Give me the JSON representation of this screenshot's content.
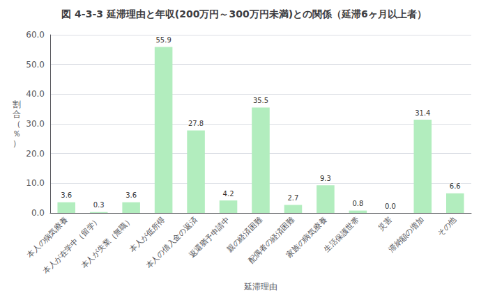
{
  "chart_data": {
    "type": "bar",
    "title": "図 4-3-3 延滞理由と年収(200万円～300万円未満)との関係（延滞6ヶ月以上者）",
    "categories": [
      "本人の病気療養",
      "本人が在学中（留学）",
      "本人が失業（無職）",
      "本人が低所得",
      "本人の借入金の返済",
      "返還猶予申請中",
      "親の経済困難",
      "配偶者の経済困難",
      "家族の病気療養",
      "生活保護世帯",
      "災害",
      "滞納額の増加",
      "その他"
    ],
    "values": [
      3.6,
      0.3,
      3.6,
      55.9,
      27.8,
      4.2,
      35.5,
      2.7,
      9.3,
      0.8,
      0.0,
      31.4,
      6.6
    ],
    "value_labels": [
      "3.6",
      "0.3",
      "3.6",
      "55.9",
      "27.8",
      "4.2",
      "35.5",
      "2.7",
      "9.3",
      "0.8",
      "0.0",
      "31.4",
      "6.6"
    ],
    "data_labels": true,
    "color": "#b2edbe",
    "xlabel": "延滞理由",
    "ylabel": "割\n合\n（\n％\n）",
    "ylim": [
      0,
      60
    ],
    "yticks": [
      {
        "value": 0,
        "label": "0.0"
      },
      {
        "value": 10,
        "label": "10.0"
      },
      {
        "value": 20,
        "label": "20.0"
      },
      {
        "value": 30,
        "label": "30.0"
      },
      {
        "value": 40,
        "label": "40.0"
      },
      {
        "value": 50,
        "label": "50.0"
      },
      {
        "value": 60,
        "label": "60.0"
      }
    ],
    "grid": true
  }
}
